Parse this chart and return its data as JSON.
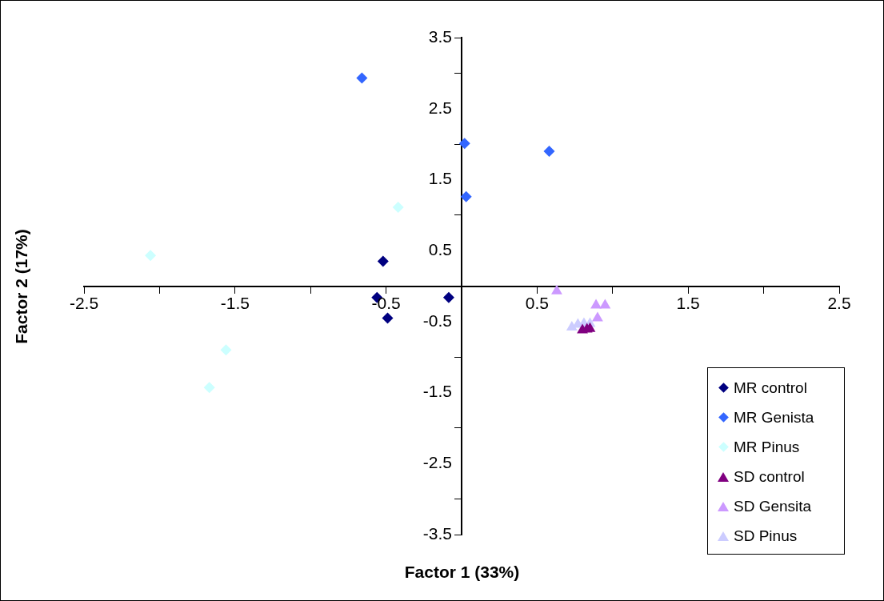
{
  "chart_data": {
    "type": "scatter",
    "xlabel": "Factor 1 (33%)",
    "ylabel": "Factor 2 (17%)",
    "xlim": [
      -2.5,
      2.5
    ],
    "ylim": [
      -3.5,
      3.5
    ],
    "xticks": [
      -2.5,
      -1.5,
      -0.5,
      0.5,
      1.5,
      2.5
    ],
    "yticks": [
      -3.5,
      -2.5,
      -1.5,
      -0.5,
      0.5,
      1.5,
      2.5,
      3.5
    ],
    "grid": false,
    "legend": "bottom right",
    "series": [
      {
        "name": "MR control",
        "color": "#000080",
        "marker": "diamond",
        "x": [
          -0.56,
          -0.52,
          -0.49,
          -0.085
        ],
        "values": [
          -0.16,
          0.35,
          -0.45,
          -0.16
        ]
      },
      {
        "name": "MR Genista",
        "color": "#3366ff",
        "marker": "diamond",
        "x": [
          -0.66,
          0.02,
          0.03,
          0.58
        ],
        "values": [
          2.93,
          2.01,
          1.26,
          1.9
        ]
      },
      {
        "name": "MR Pinus",
        "color": "#ccffff",
        "marker": "diamond",
        "x": [
          -2.06,
          -0.42,
          -1.56,
          -1.67
        ],
        "values": [
          0.43,
          1.11,
          -0.9,
          -1.43
        ]
      },
      {
        "name": "SD control",
        "color": "#800080",
        "marker": "triangle",
        "x": [
          0.8,
          0.83,
          0.85
        ],
        "values": [
          -0.62,
          -0.61,
          -0.6
        ]
      },
      {
        "name": "SD Gensita",
        "color": "#cc99ff",
        "marker": "triangle",
        "x": [
          0.63,
          0.89,
          0.95,
          0.9
        ],
        "values": [
          -0.07,
          -0.27,
          -0.27,
          -0.45
        ]
      },
      {
        "name": "SD Pinus",
        "color": "#ccccff",
        "marker": "triangle",
        "x": [
          0.73,
          0.77,
          0.81,
          0.85
        ],
        "values": [
          -0.58,
          -0.54,
          -0.53,
          -0.53
        ]
      }
    ]
  }
}
